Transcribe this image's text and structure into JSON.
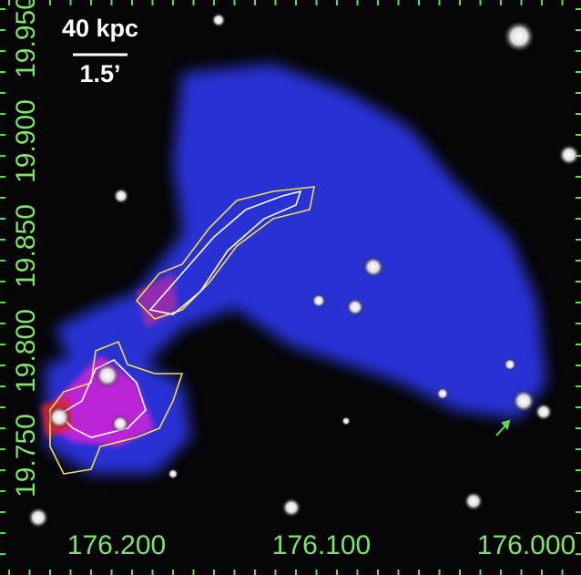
{
  "scale_bar": {
    "length": "40 kpc",
    "angle": "1.5’"
  },
  "axes": {
    "x_labels": [
      "176.200",
      "176.100",
      "176.000"
    ],
    "y_labels": [
      "19.950",
      "19.900",
      "19.850",
      "19.800",
      "19.750"
    ]
  }
}
